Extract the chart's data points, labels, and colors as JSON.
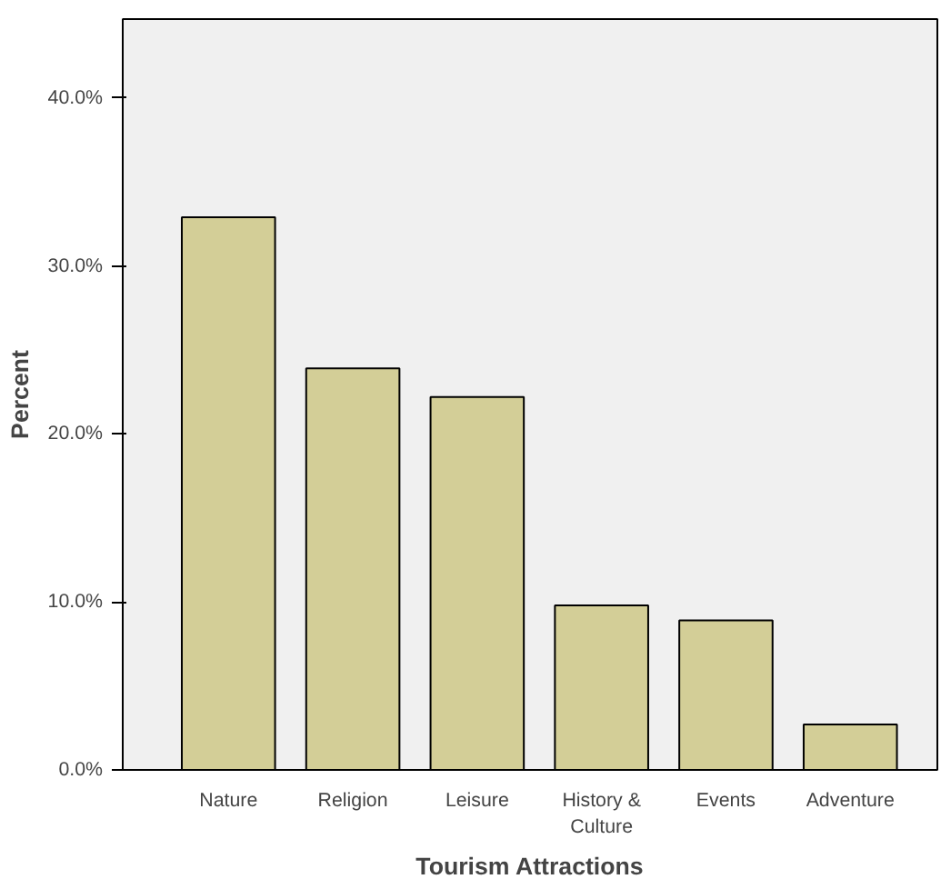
{
  "chart_data": {
    "type": "bar",
    "xlabel": "Tourism Attractions",
    "ylabel": "Percent",
    "categories": [
      "Nature",
      "Religion",
      "Leisure",
      "History & Culture",
      "Events",
      "Adventure"
    ],
    "values": [
      32.9,
      23.9,
      22.2,
      9.8,
      8.9,
      2.7
    ],
    "color": "#d3ce97",
    "ylim": [
      0,
      44.7
    ],
    "yticks": [
      {
        "value": 0,
        "label": "0.0%"
      },
      {
        "value": 10,
        "label": "10.0%"
      },
      {
        "value": 20,
        "label": "20.0%"
      },
      {
        "value": 30,
        "label": "30.0%"
      },
      {
        "value": 40,
        "label": "40.0%"
      }
    ],
    "grid": false
  }
}
